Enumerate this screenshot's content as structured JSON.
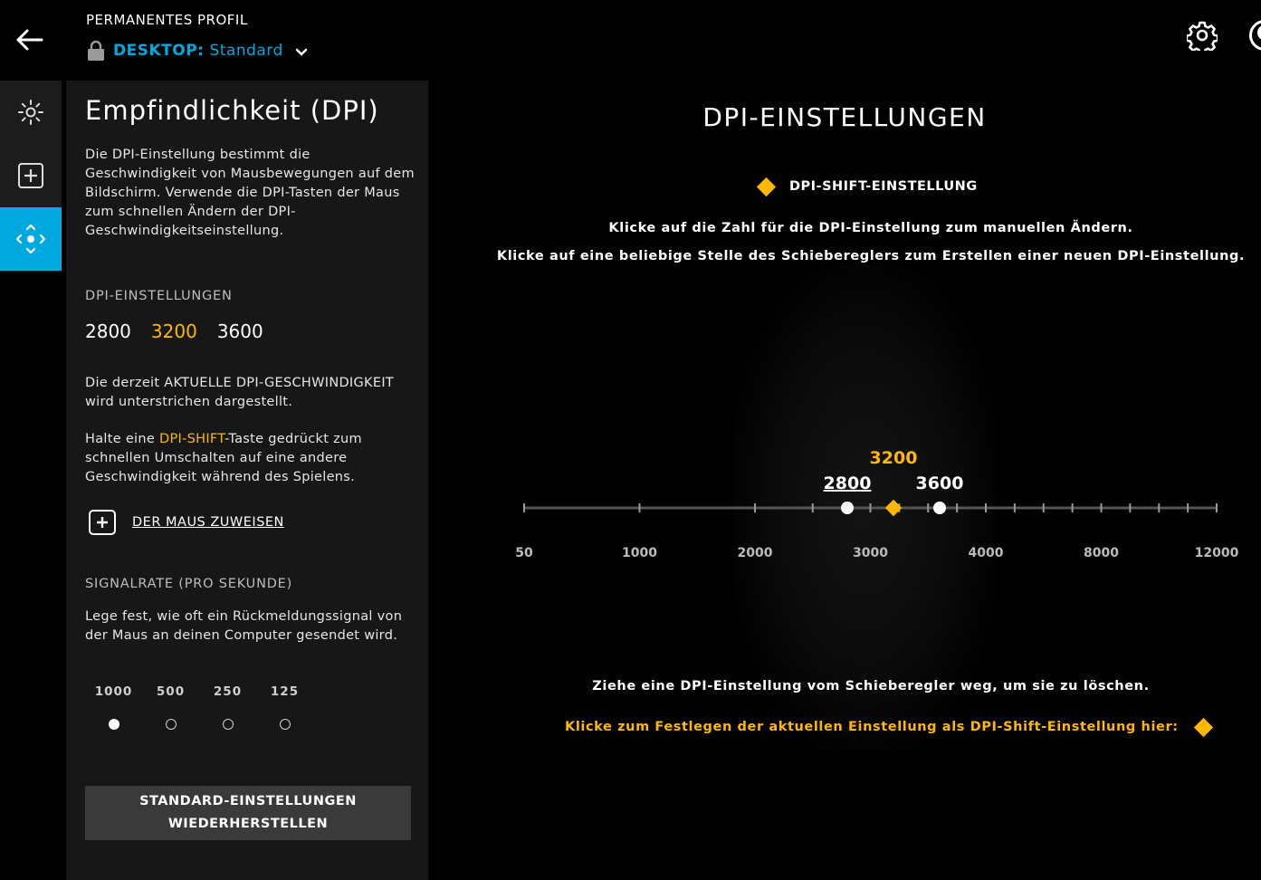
{
  "header": {
    "profile_label": "PERMANENTES PROFIL",
    "device": "DESKTOP:",
    "profile_name": "Standard"
  },
  "rail": {
    "items": [
      "lighting",
      "assignments",
      "sensitivity"
    ],
    "active": "sensitivity"
  },
  "panel": {
    "title": "Empfindlichkeit (DPI)",
    "description": "Die DPI-Einstellung bestimmt die Geschwindigkeit von Mausbewegungen auf dem Bildschirm. Verwende die DPI-Tasten der Maus zum schnellen Ändern der DPI-Geschwindigkeitseinstellung.",
    "dpi_heading": "DPI-EINSTELLUNGEN",
    "dpi_values": [
      "2800",
      "3200",
      "3600"
    ],
    "current_note": "Die derzeit AKTUELLE DPI-GESCHWINDIGKEIT wird unterstrichen dargestellt.",
    "shift_note_pre": "Halte eine ",
    "shift_note_key": "DPI-SHIFT",
    "shift_note_post": "-Taste gedrückt zum schnellen Umschalten auf eine andere Geschwindigkeit während des Spielens.",
    "assign_label": "DER MAUS ZUWEISEN",
    "rate_heading": "SIGNALRATE (PRO SEKUNDE)",
    "rate_description": "Lege fest, wie oft ein Rückmeldungssignal von der Maus an deinen Computer gesendet wird.",
    "rates": [
      "1000",
      "500",
      "250",
      "125"
    ],
    "selected_rate": "1000",
    "reset_label": "STANDARD-EINSTELLUNGEN\nWIEDERHERSTELLEN"
  },
  "main": {
    "title": "DPI-EINSTELLUNGEN",
    "shift_legend": "DPI-SHIFT-EINSTELLUNG",
    "instruction_1": "Klicke auf die Zahl für die DPI-Einstellung zum manuellen Ändern.",
    "instruction_2": "Klicke auf eine beliebige Stelle des Schiebereglers zum Erstellen einer neuen DPI-Einstellung.",
    "delete_hint": "Ziehe eine DPI-Einstellung vom Schieberegler weg, um sie zu löschen.",
    "set_shift": "Klicke zum Festlegen der aktuellen Einstellung als DPI-Shift-Einstellung hier:"
  },
  "slider": {
    "scale_labels": [
      "50",
      "1000",
      "2000",
      "3000",
      "4000",
      "8000",
      "12000"
    ],
    "points": [
      {
        "value": 2800,
        "label": "2800",
        "current": true
      },
      {
        "value": 3600,
        "label": "3600",
        "current": false
      }
    ],
    "shift_value": 3200,
    "shift_label": "3200"
  },
  "colors": {
    "accent_blue": "#00a8e0",
    "accent_yellow": "#ffb800",
    "panel": "#171717"
  }
}
